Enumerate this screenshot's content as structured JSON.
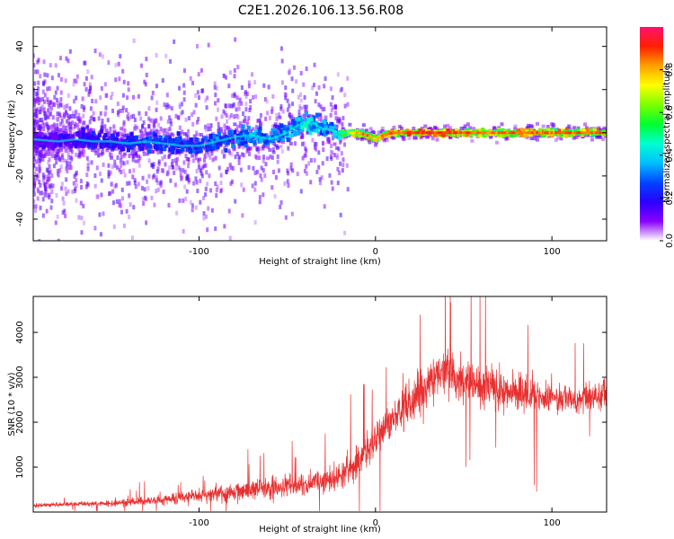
{
  "title": "C2E1.2026.106.13.56.R08",
  "chart_data": [
    {
      "type": "heatmap",
      "name": "spectrogram",
      "xlabel": "Height of straight line (km)",
      "ylabel": "Frequency (Hz)",
      "xlim": [
        -194,
        131
      ],
      "ylim": [
        -50,
        49
      ],
      "xticks": [
        -100,
        0,
        100
      ],
      "yticks": [
        -40,
        -20,
        0,
        20,
        40
      ],
      "x_tick_labels": [
        "-100",
        "0",
        "100"
      ],
      "y_tick_labels": [
        "-40",
        "-20",
        "0",
        "20",
        "40"
      ],
      "grid": false,
      "colorbar": {
        "label": "Normalized spectral amplitude",
        "range": [
          0,
          1
        ],
        "ticks": [
          0.0,
          0.2,
          0.4,
          0.6,
          0.8
        ],
        "tick_labels": [
          "0.0",
          "0.2",
          "0.4",
          "0.6",
          "0.8"
        ],
        "colors": [
          "#ffffff",
          "#8a00ff",
          "#2a00ff",
          "#0044ff",
          "#00bfff",
          "#00ffd0",
          "#00ff30",
          "#7cff00",
          "#ffff00",
          "#ffa000",
          "#ff2000",
          "#ff1070"
        ]
      },
      "ridge": {
        "x": [
          -194,
          -180,
          -170,
          -160,
          -150,
          -140,
          -130,
          -120,
          -110,
          -100,
          -90,
          -80,
          -70,
          -60,
          -50,
          -45,
          -40,
          -35,
          -30,
          -25,
          -20,
          -10,
          -5,
          0,
          5,
          10,
          20,
          40,
          60,
          80,
          100,
          131
        ],
        "y": [
          -3,
          -4,
          -3,
          -4,
          -4,
          -5,
          -4,
          -5,
          -6,
          -6,
          -4,
          -2,
          -1,
          -3,
          0,
          3,
          5,
          4,
          2,
          1,
          0,
          0,
          -1,
          -3,
          -1,
          0,
          0,
          0,
          0,
          0,
          0,
          0
        ],
        "amplitude": [
          0.15,
          0.2,
          0.2,
          0.25,
          0.25,
          0.25,
          0.3,
          0.3,
          0.3,
          0.3,
          0.35,
          0.35,
          0.4,
          0.4,
          0.4,
          0.45,
          0.5,
          0.45,
          0.4,
          0.4,
          0.6,
          0.85,
          0.9,
          0.8,
          0.9,
          0.9,
          0.95,
          0.95,
          0.9,
          0.9,
          0.9,
          0.9
        ]
      }
    },
    {
      "type": "line",
      "name": "snr",
      "xlabel": "Height of straight line (km)",
      "ylabel": "SNR (10 * v/v)",
      "xlim": [
        -194,
        131
      ],
      "ylim": [
        0,
        4800
      ],
      "xticks": [
        -100,
        0,
        100
      ],
      "yticks": [
        1000,
        2000,
        3000,
        4000
      ],
      "x_tick_labels": [
        "-100",
        "0",
        "100"
      ],
      "y_tick_labels": [
        "1000",
        "2000",
        "3000",
        "4000"
      ],
      "grid": false,
      "color": "#e83030",
      "series": [
        {
          "name": "SNR",
          "x": [
            -194,
            -185,
            -175,
            -165,
            -155,
            -145,
            -135,
            -125,
            -115,
            -105,
            -95,
            -85,
            -75,
            -65,
            -55,
            -45,
            -35,
            -30,
            -25,
            -20,
            -15,
            -10,
            -5,
            0,
            5,
            10,
            15,
            20,
            25,
            30,
            35,
            40,
            45,
            50,
            55,
            60,
            65,
            70,
            75,
            80,
            85,
            90,
            95,
            100,
            105,
            110,
            115,
            120,
            125,
            131
          ],
          "y": [
            150,
            160,
            170,
            180,
            190,
            200,
            230,
            260,
            300,
            350,
            380,
            430,
            470,
            520,
            560,
            600,
            640,
            680,
            720,
            800,
            900,
            1100,
            1400,
            1600,
            1850,
            2050,
            2250,
            2450,
            2650,
            2850,
            3050,
            3100,
            3000,
            2950,
            2900,
            2850,
            2800,
            2750,
            2700,
            2650,
            2600,
            2600,
            2550,
            2550,
            2500,
            2500,
            2500,
            2550,
            2600,
            2650
          ],
          "noise": [
            60,
            60,
            60,
            70,
            80,
            90,
            110,
            130,
            150,
            180,
            200,
            240,
            260,
            280,
            300,
            320,
            340,
            360,
            380,
            420,
            450,
            480,
            500,
            520,
            540,
            560,
            580,
            600,
            620,
            640,
            650,
            660,
            650,
            640,
            630,
            620,
            600,
            580,
            560,
            540,
            520,
            500,
            480,
            460,
            450,
            440,
            430,
            420,
            420,
            420
          ]
        }
      ]
    }
  ]
}
